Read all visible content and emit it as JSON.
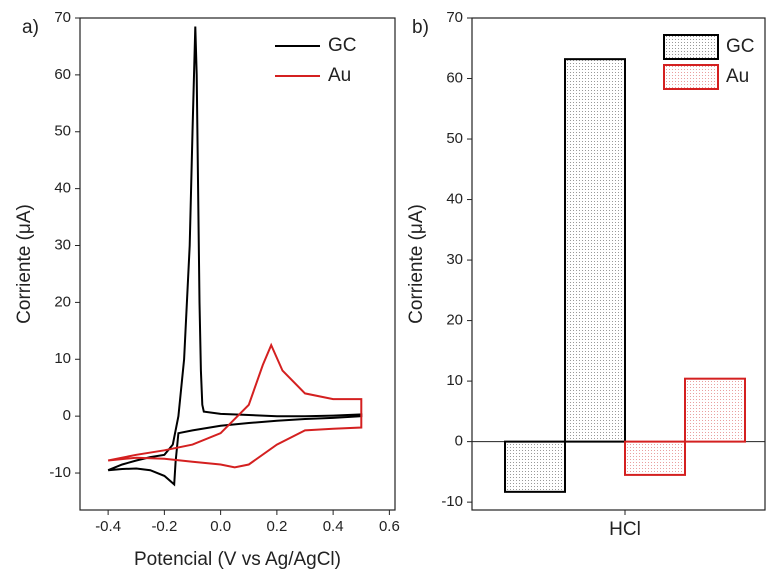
{
  "chart_data": [
    {
      "type": "line",
      "panel_label": "a)",
      "x_label": "Potencial (V vs Ag/AgCl)",
      "y_label": "Corriente (μA)",
      "xlim": [
        -0.5,
        0.62
      ],
      "ylim": [
        -16.5,
        70
      ],
      "xticks": [
        -0.4,
        -0.2,
        {
          "value": 0,
          "label": "0.0"
        },
        0.2,
        0.4,
        0.6
      ],
      "yticks": [
        -10,
        0,
        10,
        20,
        30,
        40,
        50,
        60,
        70
      ],
      "series": [
        {
          "name": "GC",
          "color": "#000000",
          "x": [
            -0.4,
            -0.35,
            -0.3,
            -0.25,
            -0.2,
            -0.17,
            -0.15,
            -0.13,
            -0.11,
            -0.1,
            -0.09,
            -0.085,
            -0.08,
            -0.075,
            -0.07,
            -0.065,
            -0.06,
            0.0,
            0.1,
            0.2,
            0.3,
            0.4,
            0.5,
            0.5,
            0.4,
            0.3,
            0.2,
            0.1,
            0.0,
            -0.1,
            -0.15,
            -0.16,
            -0.165,
            -0.2,
            -0.25,
            -0.3,
            -0.35,
            -0.4
          ],
          "values": [
            -9.5,
            -8.5,
            -7.8,
            -7.2,
            -6.8,
            -5,
            0,
            10,
            30,
            50,
            68.5,
            60,
            40,
            20,
            8,
            2,
            0.8,
            0.4,
            0.2,
            0,
            0,
            0.1,
            0.3,
            0,
            -0.3,
            -0.5,
            -0.8,
            -1.2,
            -1.7,
            -2.5,
            -3,
            -8,
            -12,
            -10.5,
            -9.5,
            -9.2,
            -9.3,
            -9.5
          ]
        },
        {
          "name": "Au",
          "color": "#d42020",
          "x": [
            -0.4,
            -0.3,
            -0.2,
            -0.1,
            0.0,
            0.1,
            0.15,
            0.18,
            0.22,
            0.3,
            0.4,
            0.5,
            0.5,
            0.4,
            0.3,
            0.2,
            0.1,
            0.05,
            0.0,
            -0.1,
            -0.2,
            -0.3,
            -0.4
          ],
          "values": [
            -7.8,
            -6.8,
            -6,
            -5,
            -3,
            2,
            9,
            12.5,
            8,
            4,
            3,
            3,
            -2,
            -2.2,
            -2.5,
            -5,
            -8.5,
            -9,
            -8.5,
            -8,
            -7.5,
            -7.3,
            -7.8
          ]
        }
      ]
    },
    {
      "type": "bar",
      "panel_label": "b)",
      "x_label": "HCl",
      "y_label": "Corriente (μA)",
      "categories": [
        null,
        null,
        null,
        null
      ],
      "ylim": [
        -11.3,
        70
      ],
      "yticks": [
        -10,
        0,
        10,
        20,
        30,
        40,
        50,
        60,
        70
      ],
      "series": [
        {
          "name": "GC",
          "color": "#000000",
          "values": [
            -8.3,
            63.2,
            null,
            null
          ]
        },
        {
          "name": "Au",
          "color": "#d42020",
          "values": [
            null,
            null,
            -5.5,
            10.4
          ]
        }
      ]
    }
  ]
}
